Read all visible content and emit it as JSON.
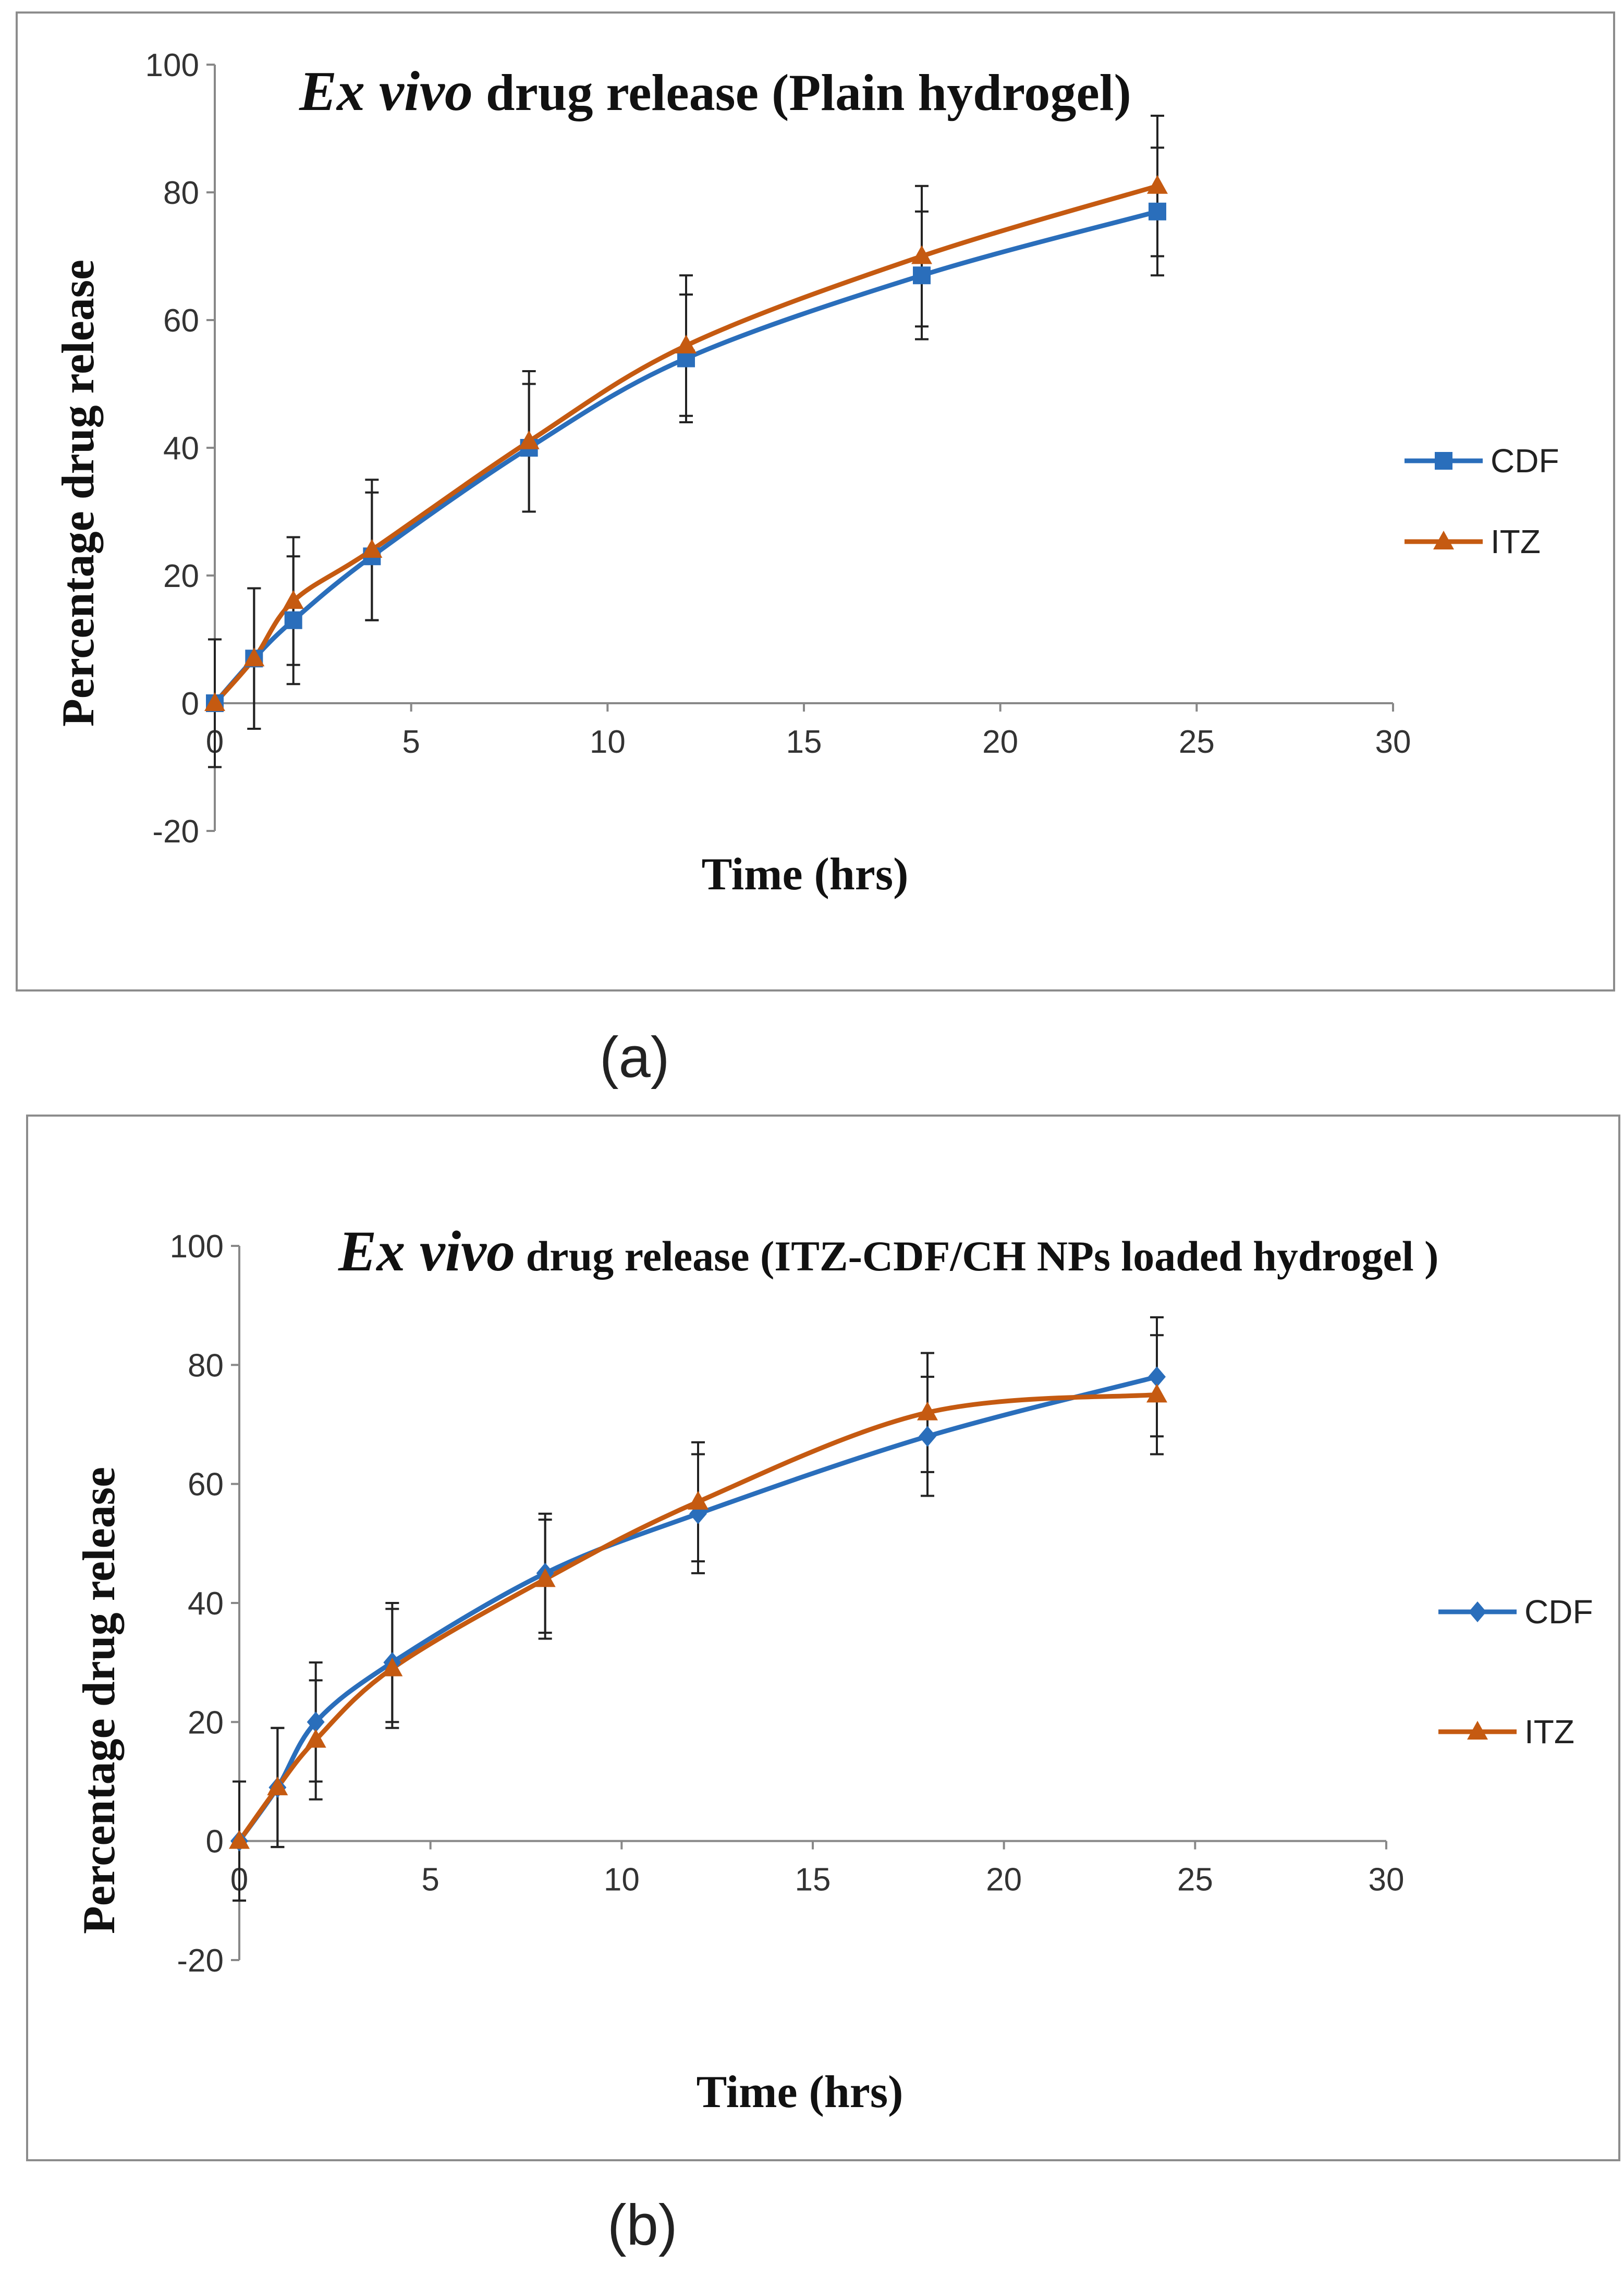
{
  "captions": [
    "(a)",
    "(b)"
  ],
  "chart_data": [
    {
      "type": "line",
      "title_italic": "Ex vivo",
      "title_rest": " drug release (Plain hydrogel)",
      "xlabel": "Time (hrs)",
      "ylabel": "Percentage drug release",
      "xlim": [
        0,
        30
      ],
      "ylim": [
        -20,
        100
      ],
      "xticks": [
        0,
        5,
        10,
        15,
        20,
        25,
        30
      ],
      "yticks": [
        -20,
        0,
        20,
        40,
        60,
        80,
        100
      ],
      "grid": false,
      "legend_position": "right",
      "x": [
        0,
        1,
        2,
        4,
        8,
        12,
        18,
        24
      ],
      "series": [
        {
          "name": "CDF",
          "marker": "square",
          "color": "#2a6ebb",
          "values": [
            0,
            7,
            13,
            23,
            40,
            54,
            67,
            77
          ],
          "errors": [
            10,
            11,
            10,
            10,
            10,
            10,
            10,
            10
          ]
        },
        {
          "name": "ITZ",
          "marker": "triangle",
          "color": "#c55a11",
          "values": [
            0,
            7,
            16,
            24,
            41,
            56,
            70,
            81
          ],
          "errors": [
            10,
            11,
            10,
            11,
            11,
            11,
            11,
            11
          ]
        }
      ]
    },
    {
      "type": "line",
      "title_italic": "Ex vivo",
      "title_rest": " drug release (ITZ-CDF/CH NPs loaded hydrogel )",
      "xlabel": "Time (hrs)",
      "ylabel": "Percentage drug release",
      "xlim": [
        0,
        30
      ],
      "ylim": [
        -20,
        100
      ],
      "xticks": [
        0,
        5,
        10,
        15,
        20,
        25,
        30
      ],
      "yticks": [
        -20,
        0,
        20,
        40,
        60,
        80,
        100
      ],
      "grid": false,
      "legend_position": "right",
      "x": [
        0,
        1,
        2,
        4,
        8,
        12,
        18,
        24
      ],
      "series": [
        {
          "name": "CDF",
          "marker": "diamond",
          "color": "#2a6ebb",
          "values": [
            0,
            9,
            20,
            30,
            45,
            55,
            68,
            78
          ],
          "errors": [
            10,
            10,
            10,
            10,
            10,
            10,
            10,
            10
          ]
        },
        {
          "name": "ITZ",
          "marker": "triangle",
          "color": "#c55a11",
          "values": [
            0,
            9,
            17,
            29,
            44,
            57,
            72,
            75
          ],
          "errors": [
            10,
            10,
            10,
            10,
            10,
            10,
            10,
            10
          ]
        }
      ]
    }
  ]
}
